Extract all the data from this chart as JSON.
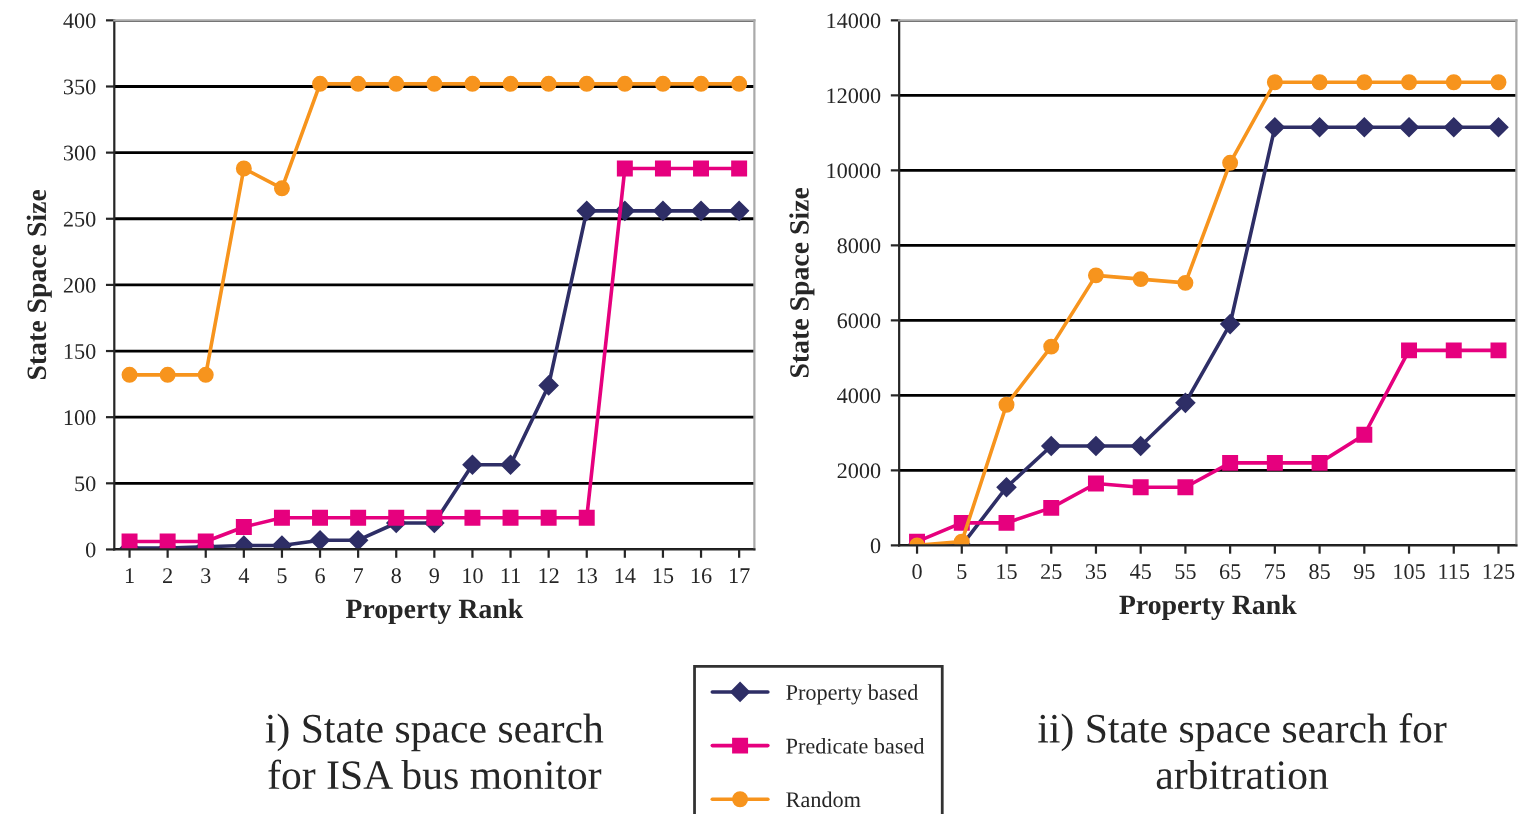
{
  "chart_data": [
    {
      "type": "line",
      "xlabel": "Property Rank",
      "ylabel": "State Space Size",
      "categories": [
        "1",
        "2",
        "3",
        "4",
        "5",
        "6",
        "7",
        "8",
        "9",
        "10",
        "11",
        "12",
        "13",
        "14",
        "15",
        "16",
        "17"
      ],
      "ylim": [
        0,
        400
      ],
      "yticks": [
        0,
        50,
        100,
        150,
        200,
        250,
        300,
        350,
        400
      ],
      "grid": "y",
      "legend": "bottom right",
      "annotations": [
        "i) State space search\nfor ISA bus monitor"
      ],
      "series": [
        {
          "name": "Property based",
          "color": "#2e2e66",
          "marker": "diamond",
          "values": [
            1,
            1,
            2,
            3,
            3,
            7,
            7,
            20,
            20,
            64,
            64,
            124,
            256,
            256,
            256,
            256,
            256
          ]
        },
        {
          "name": "Predicate based",
          "color": "#e6007e",
          "marker": "square",
          "values": [
            6,
            6,
            6,
            17,
            24,
            24,
            24,
            24,
            24,
            24,
            24,
            24,
            24,
            288,
            288,
            288,
            288
          ]
        },
        {
          "name": "Random",
          "color": "#f7941d",
          "marker": "circle",
          "values": [
            132,
            132,
            132,
            288,
            273,
            352,
            352,
            352,
            352,
            352,
            352,
            352,
            352,
            352,
            352,
            352,
            352
          ]
        }
      ]
    },
    {
      "type": "line",
      "xlabel": "Property Rank",
      "ylabel": "State Space Size",
      "categories": [
        "0",
        "5",
        "15",
        "25",
        "35",
        "45",
        "55",
        "65",
        "75",
        "85",
        "95",
        "105",
        "115",
        "125"
      ],
      "ylim": [
        0,
        14000
      ],
      "yticks": [
        0,
        2000,
        4000,
        6000,
        8000,
        10000,
        12000,
        14000
      ],
      "grid": "y",
      "annotations": [
        "ii) State space search for\narbitration"
      ],
      "series": [
        {
          "color": "#2e2e66",
          "marker": "diamond",
          "values": [
            0,
            0,
            1550,
            2650,
            2650,
            2650,
            3800,
            5900,
            11150,
            11150,
            11150,
            11150,
            11150,
            11150
          ]
        },
        {
          "color": "#e6007e",
          "marker": "square",
          "values": [
            100,
            600,
            600,
            1000,
            1650,
            1550,
            1550,
            2200,
            2200,
            2200,
            2950,
            5200,
            5200,
            5200
          ]
        },
        {
          "color": "#f7941d",
          "marker": "circle",
          "values": [
            0,
            100,
            3750,
            5300,
            7200,
            7100,
            7000,
            10200,
            12350,
            12350,
            12350,
            12350,
            12350,
            12350
          ]
        }
      ]
    }
  ]
}
